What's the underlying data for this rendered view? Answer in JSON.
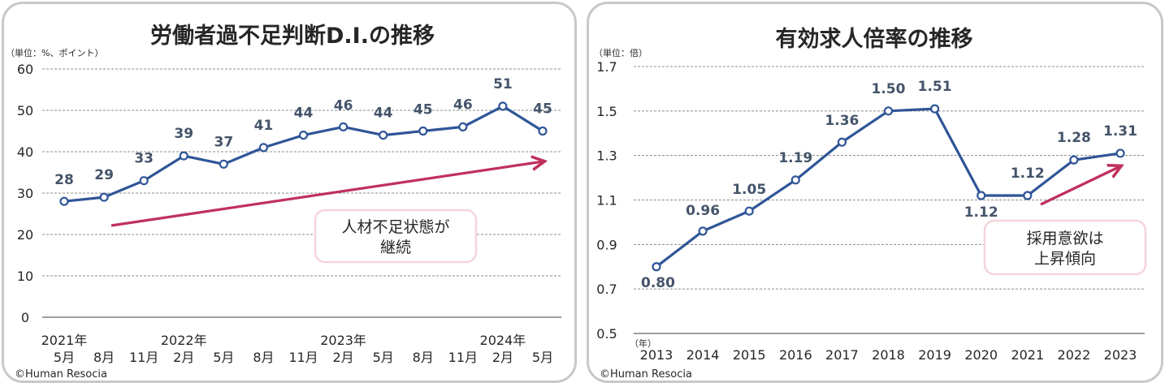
{
  "chart_data": [
    {
      "type": "line",
      "title": "労働者過不足判断D.I.の推移",
      "unit_label": "（単位：%、ポイント）",
      "ylim": [
        0,
        60
      ],
      "yticks": [
        "0",
        "10",
        "20",
        "30",
        "40",
        "50",
        "60"
      ],
      "x_month_labels": [
        "5月",
        "8月",
        "11月",
        "2月",
        "5月",
        "8月",
        "11月",
        "2月",
        "5月",
        "8月",
        "11月",
        "2月",
        "5月"
      ],
      "x_year_labels": [
        {
          "index": 0,
          "label": "2021年"
        },
        {
          "index": 3,
          "label": "2022年"
        },
        {
          "index": 7,
          "label": "2023年"
        },
        {
          "index": 11,
          "label": "2024年"
        }
      ],
      "values": [
        28,
        29,
        33,
        39,
        37,
        41,
        44,
        46,
        44,
        45,
        46,
        51,
        45
      ],
      "data_labels": [
        "28",
        "29",
        "33",
        "39",
        "37",
        "41",
        "44",
        "46",
        "44",
        "45",
        "46",
        "51",
        "45"
      ],
      "annotation": {
        "line1": "人材不足状態が",
        "line2": "継続"
      },
      "credit": "©Human Resocia",
      "line_color": "#2f5597",
      "arrow_color": "#c0305c"
    },
    {
      "type": "line",
      "title": "有効求人倍率の推移",
      "unit_label": "（単位：倍）",
      "ylim": [
        0.5,
        1.7
      ],
      "yticks": [
        "0.5",
        "0.7",
        "0.9",
        "1.1",
        "1.3",
        "1.5",
        "1.7"
      ],
      "year_unit_label": "（年）",
      "categories": [
        "2013",
        "2014",
        "2015",
        "2016",
        "2017",
        "2018",
        "2019",
        "2020",
        "2021",
        "2022",
        "2023"
      ],
      "values": [
        0.8,
        0.96,
        1.05,
        1.19,
        1.36,
        1.5,
        1.51,
        1.12,
        1.12,
        1.28,
        1.31
      ],
      "data_labels": [
        "0.80",
        "0.96",
        "1.05",
        "1.19",
        "1.36",
        "1.50",
        "1.51",
        "1.12",
        "1.12",
        "1.28",
        "1.31"
      ],
      "annotation": {
        "line1": "採用意欲は",
        "line2": "上昇傾向"
      },
      "credit": "©Human Resocia",
      "line_color": "#2f5597",
      "arrow_color": "#c0305c"
    }
  ]
}
